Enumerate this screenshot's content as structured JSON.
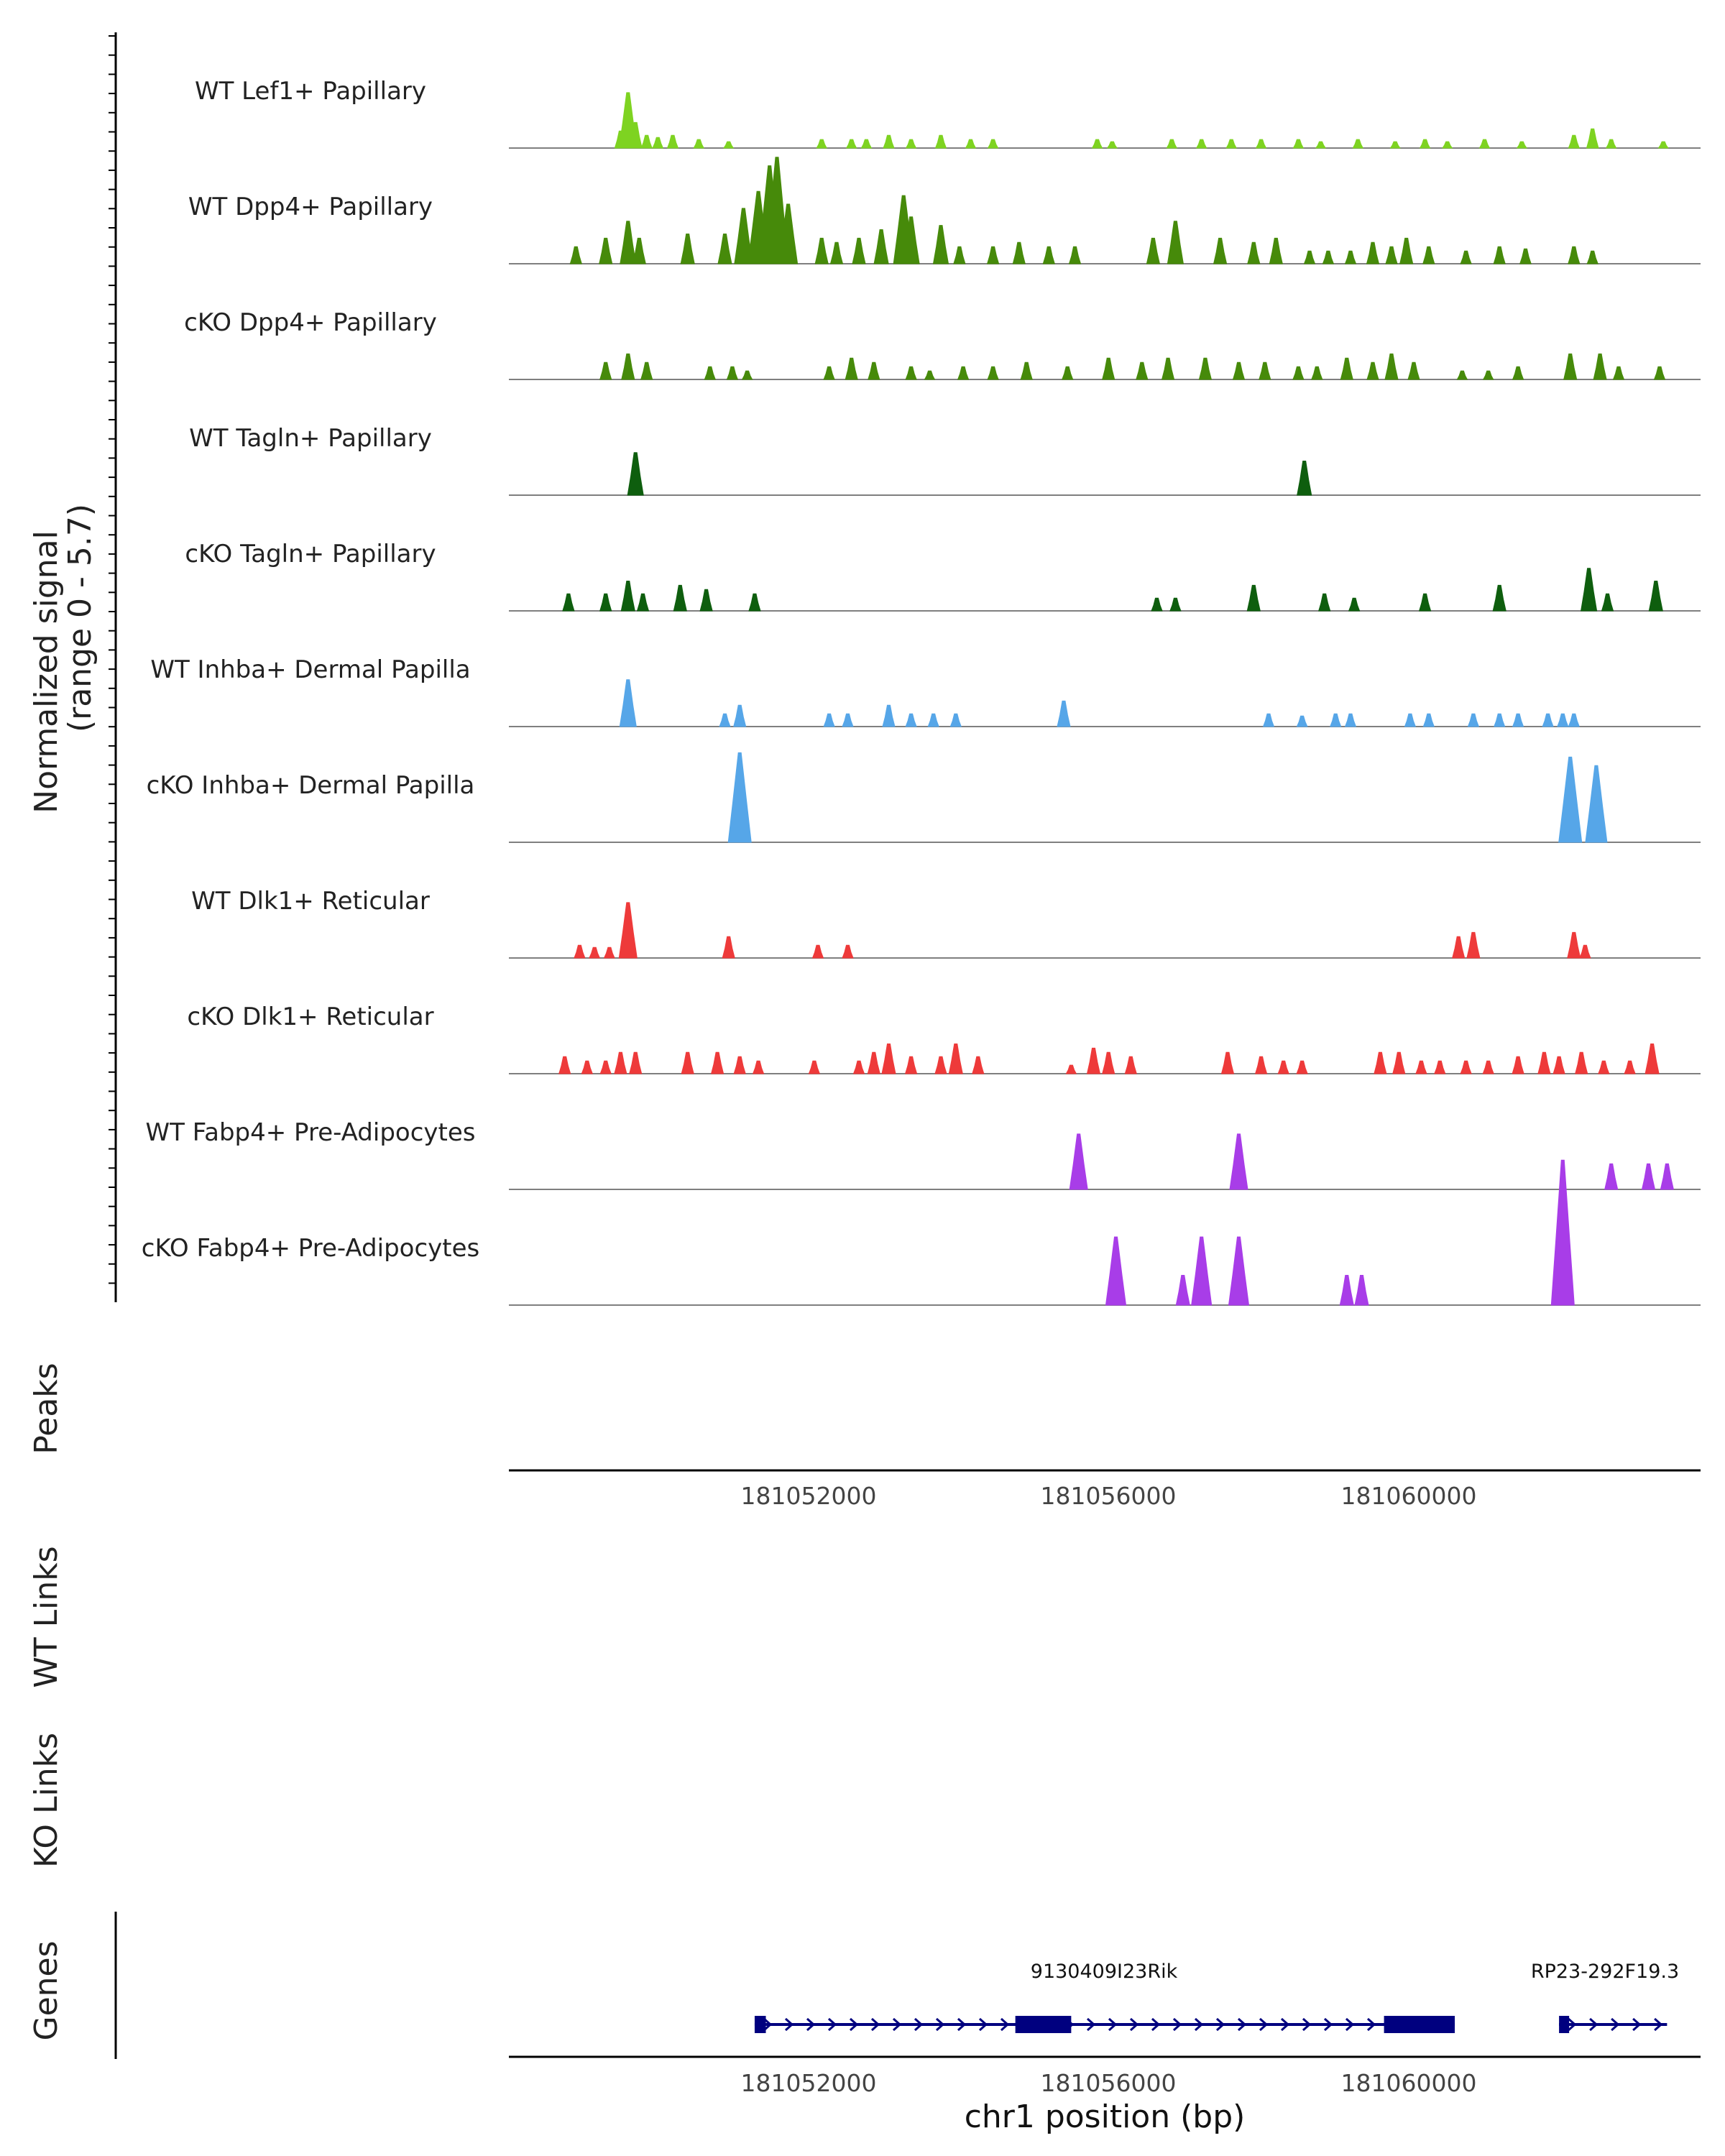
{
  "chart_data": {
    "type": "area",
    "title": "",
    "chromosome": "chr1",
    "xlabel": "chr1 position (bp)",
    "xlim": [
      181048000,
      181064000
    ],
    "xticks": [
      181052000,
      181056000,
      181060000
    ],
    "xtick_labels": [
      "181052000",
      "181056000",
      "181060000"
    ],
    "ylabel_line1": "Normalized signal",
    "ylabel_line2": "(range 0 - 5.7)",
    "ylim": [
      0,
      5.7
    ],
    "tracks": [
      {
        "name": "WT Lef1+ Papillary",
        "color": "#7ED321",
        "peaks": [
          [
            181049500,
            0.4
          ],
          [
            181049600,
            1.3
          ],
          [
            181049700,
            0.6
          ],
          [
            181049850,
            0.3
          ],
          [
            181050000,
            0.25
          ],
          [
            181050200,
            0.3
          ],
          [
            181050550,
            0.2
          ],
          [
            181050950,
            0.15
          ],
          [
            181052200,
            0.2
          ],
          [
            181052600,
            0.2
          ],
          [
            181052800,
            0.2
          ],
          [
            181053100,
            0.3
          ],
          [
            181053400,
            0.2
          ],
          [
            181053800,
            0.3
          ],
          [
            181054200,
            0.2
          ],
          [
            181054500,
            0.2
          ],
          [
            181055900,
            0.2
          ],
          [
            181056100,
            0.15
          ],
          [
            181056900,
            0.2
          ],
          [
            181057300,
            0.2
          ],
          [
            181057700,
            0.2
          ],
          [
            181058100,
            0.2
          ],
          [
            181058600,
            0.2
          ],
          [
            181058900,
            0.15
          ],
          [
            181059400,
            0.2
          ],
          [
            181059900,
            0.15
          ],
          [
            181060300,
            0.2
          ],
          [
            181060600,
            0.15
          ],
          [
            181061100,
            0.2
          ],
          [
            181061600,
            0.15
          ],
          [
            181062300,
            0.3
          ],
          [
            181062550,
            0.45
          ],
          [
            181062800,
            0.2
          ],
          [
            181063500,
            0.15
          ]
        ]
      },
      {
        "name": "WT Dpp4+ Papillary",
        "color": "#468A0A",
        "peaks": [
          [
            181048900,
            0.4
          ],
          [
            181049300,
            0.6
          ],
          [
            181049600,
            1.0
          ],
          [
            181049750,
            0.6
          ],
          [
            181050400,
            0.7
          ],
          [
            181050900,
            0.7
          ],
          [
            181051150,
            1.3
          ],
          [
            181051350,
            1.7
          ],
          [
            181051500,
            2.3
          ],
          [
            181051600,
            2.5
          ],
          [
            181051750,
            1.4
          ],
          [
            181052200,
            0.6
          ],
          [
            181052400,
            0.5
          ],
          [
            181052700,
            0.6
          ],
          [
            181053000,
            0.8
          ],
          [
            181053300,
            1.6
          ],
          [
            181053400,
            1.1
          ],
          [
            181053800,
            0.9
          ],
          [
            181054050,
            0.4
          ],
          [
            181054500,
            0.4
          ],
          [
            181054850,
            0.5
          ],
          [
            181055250,
            0.4
          ],
          [
            181055600,
            0.4
          ],
          [
            181056650,
            0.6
          ],
          [
            181056950,
            1.0
          ],
          [
            181057550,
            0.6
          ],
          [
            181058000,
            0.5
          ],
          [
            181058300,
            0.6
          ],
          [
            181058750,
            0.3
          ],
          [
            181059000,
            0.3
          ],
          [
            181059300,
            0.3
          ],
          [
            181059600,
            0.5
          ],
          [
            181059850,
            0.4
          ],
          [
            181060050,
            0.6
          ],
          [
            181060350,
            0.4
          ],
          [
            181060850,
            0.3
          ],
          [
            181061300,
            0.4
          ],
          [
            181061650,
            0.35
          ],
          [
            181062300,
            0.4
          ],
          [
            181062550,
            0.3
          ]
        ]
      },
      {
        "name": "cKO Dpp4+ Papillary",
        "color": "#468A0A",
        "peaks": [
          [
            181049300,
            0.4
          ],
          [
            181049600,
            0.6
          ],
          [
            181049850,
            0.4
          ],
          [
            181050700,
            0.3
          ],
          [
            181051000,
            0.3
          ],
          [
            181051200,
            0.2
          ],
          [
            181052300,
            0.3
          ],
          [
            181052600,
            0.5
          ],
          [
            181052900,
            0.4
          ],
          [
            181053400,
            0.3
          ],
          [
            181053650,
            0.2
          ],
          [
            181054100,
            0.3
          ],
          [
            181054500,
            0.3
          ],
          [
            181054950,
            0.4
          ],
          [
            181055500,
            0.3
          ],
          [
            181056050,
            0.5
          ],
          [
            181056500,
            0.4
          ],
          [
            181056850,
            0.5
          ],
          [
            181057350,
            0.5
          ],
          [
            181057800,
            0.4
          ],
          [
            181058150,
            0.4
          ],
          [
            181058600,
            0.3
          ],
          [
            181058850,
            0.3
          ],
          [
            181059250,
            0.5
          ],
          [
            181059600,
            0.4
          ],
          [
            181059850,
            0.6
          ],
          [
            181060150,
            0.4
          ],
          [
            181060800,
            0.2
          ],
          [
            181061150,
            0.2
          ],
          [
            181061550,
            0.3
          ],
          [
            181062250,
            0.6
          ],
          [
            181062650,
            0.6
          ],
          [
            181062900,
            0.3
          ],
          [
            181063450,
            0.3
          ]
        ]
      },
      {
        "name": "WT Tagln+ Papillary",
        "color": "#0E5E0E",
        "peaks": [
          [
            181049700,
            1.0
          ],
          [
            181058680,
            0.8
          ]
        ]
      },
      {
        "name": "cKO Tagln+ Papillary",
        "color": "#0E5E0E",
        "peaks": [
          [
            181048800,
            0.4
          ],
          [
            181049300,
            0.4
          ],
          [
            181049600,
            0.7
          ],
          [
            181049800,
            0.4
          ],
          [
            181050300,
            0.6
          ],
          [
            181050650,
            0.5
          ],
          [
            181051300,
            0.4
          ],
          [
            181056700,
            0.3
          ],
          [
            181056950,
            0.3
          ],
          [
            181058000,
            0.6
          ],
          [
            181058950,
            0.4
          ],
          [
            181059350,
            0.3
          ],
          [
            181060300,
            0.4
          ],
          [
            181061300,
            0.6
          ],
          [
            181062500,
            1.0
          ],
          [
            181062750,
            0.4
          ],
          [
            181063400,
            0.7
          ]
        ]
      },
      {
        "name": "WT Inhba+ Dermal Papilla",
        "color": "#56A6E8",
        "peaks": [
          [
            181049600,
            1.1
          ],
          [
            181050900,
            0.3
          ],
          [
            181051100,
            0.5
          ],
          [
            181052300,
            0.3
          ],
          [
            181052550,
            0.3
          ],
          [
            181053100,
            0.5
          ],
          [
            181053400,
            0.3
          ],
          [
            181053700,
            0.3
          ],
          [
            181054000,
            0.3
          ],
          [
            181055450,
            0.6
          ],
          [
            181058200,
            0.3
          ],
          [
            181058650,
            0.25
          ],
          [
            181059100,
            0.3
          ],
          [
            181059300,
            0.3
          ],
          [
            181060100,
            0.3
          ],
          [
            181060350,
            0.3
          ],
          [
            181060950,
            0.3
          ],
          [
            181061300,
            0.3
          ],
          [
            181061550,
            0.3
          ],
          [
            181061950,
            0.3
          ],
          [
            181062150,
            0.3
          ],
          [
            181062300,
            0.3
          ]
        ]
      },
      {
        "name": "cKO Inhba+ Dermal Papilla",
        "color": "#56A6E8",
        "peaks": [
          [
            181051100,
            2.1
          ],
          [
            181062250,
            2.0
          ],
          [
            181062600,
            1.8
          ]
        ]
      },
      {
        "name": "WT Dlk1+ Reticular",
        "color": "#EE3A3A",
        "peaks": [
          [
            181048950,
            0.3
          ],
          [
            181049150,
            0.25
          ],
          [
            181049350,
            0.25
          ],
          [
            181049600,
            1.3
          ],
          [
            181050950,
            0.5
          ],
          [
            181052150,
            0.3
          ],
          [
            181052550,
            0.3
          ],
          [
            181060750,
            0.5
          ],
          [
            181060950,
            0.6
          ],
          [
            181062300,
            0.6
          ],
          [
            181062450,
            0.3
          ]
        ]
      },
      {
        "name": "cKO Dlk1+ Reticular",
        "color": "#EE3A3A",
        "peaks": [
          [
            181048750,
            0.4
          ],
          [
            181049050,
            0.3
          ],
          [
            181049300,
            0.3
          ],
          [
            181049500,
            0.5
          ],
          [
            181049700,
            0.5
          ],
          [
            181050400,
            0.5
          ],
          [
            181050800,
            0.5
          ],
          [
            181051100,
            0.4
          ],
          [
            181051350,
            0.3
          ],
          [
            181052100,
            0.3
          ],
          [
            181052700,
            0.3
          ],
          [
            181052900,
            0.5
          ],
          [
            181053100,
            0.7
          ],
          [
            181053400,
            0.4
          ],
          [
            181053800,
            0.4
          ],
          [
            181054000,
            0.7
          ],
          [
            181054300,
            0.4
          ],
          [
            181055550,
            0.2
          ],
          [
            181055850,
            0.6
          ],
          [
            181056050,
            0.5
          ],
          [
            181056350,
            0.4
          ],
          [
            181057650,
            0.5
          ],
          [
            181058100,
            0.4
          ],
          [
            181058400,
            0.3
          ],
          [
            181058650,
            0.3
          ],
          [
            181059700,
            0.5
          ],
          [
            181059950,
            0.5
          ],
          [
            181060250,
            0.3
          ],
          [
            181060500,
            0.3
          ],
          [
            181060850,
            0.3
          ],
          [
            181061150,
            0.3
          ],
          [
            181061550,
            0.4
          ],
          [
            181061900,
            0.5
          ],
          [
            181062100,
            0.4
          ],
          [
            181062400,
            0.5
          ],
          [
            181062700,
            0.3
          ],
          [
            181063050,
            0.3
          ],
          [
            181063350,
            0.7
          ]
        ]
      },
      {
        "name": "WT Fabp4+ Pre-Adipocytes",
        "color": "#A83DE8",
        "peaks": [
          [
            181055650,
            1.3
          ],
          [
            181057800,
            1.3
          ],
          [
            181062800,
            0.6
          ],
          [
            181063300,
            0.6
          ],
          [
            181063550,
            0.6
          ]
        ]
      },
      {
        "name": "cKO Fabp4+ Pre-Adipocytes",
        "color": "#A83DE8",
        "peaks": [
          [
            181056150,
            1.6
          ],
          [
            181057050,
            0.7
          ],
          [
            181057300,
            1.6
          ],
          [
            181057800,
            1.6
          ],
          [
            181059250,
            0.7
          ],
          [
            181059450,
            0.7
          ],
          [
            181062150,
            3.4
          ]
        ]
      }
    ],
    "extra_panels": [
      "Peaks",
      "WT Links",
      "KO Links",
      "Genes"
    ],
    "genes": [
      {
        "name": "9130409I23Rik",
        "start": 181051300,
        "end": 181060700,
        "strand": "+",
        "exons": [
          [
            181051300,
            181051450
          ],
          [
            181054800,
            181055550
          ],
          [
            181059750,
            181060700
          ]
        ]
      },
      {
        "name": "RP23-292F19.3",
        "start": 181062100,
        "end": 181063550,
        "strand": "+",
        "exons": [
          [
            181062100,
            181062180
          ]
        ]
      }
    ],
    "gene_color": "#00007F"
  }
}
